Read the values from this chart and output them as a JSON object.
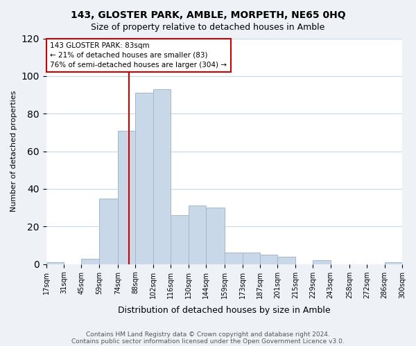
{
  "title": "143, GLOSTER PARK, AMBLE, MORPETH, NE65 0HQ",
  "subtitle": "Size of property relative to detached houses in Amble",
  "xlabel": "Distribution of detached houses by size in Amble",
  "ylabel": "Number of detached properties",
  "bar_color": "#c8d8e8",
  "bar_edge_color": "#a0b8cc",
  "bins": [
    17,
    31,
    45,
    59,
    74,
    88,
    102,
    116,
    130,
    144,
    159,
    173,
    187,
    201,
    215,
    229,
    243,
    258,
    272,
    286,
    300
  ],
  "bin_labels": [
    "17sqm",
    "31sqm",
    "45sqm",
    "59sqm",
    "74sqm",
    "88sqm",
    "102sqm",
    "116sqm",
    "130sqm",
    "144sqm",
    "159sqm",
    "173sqm",
    "187sqm",
    "201sqm",
    "215sqm",
    "229sqm",
    "243sqm",
    "258sqm",
    "272sqm",
    "286sqm",
    "300sqm"
  ],
  "counts": [
    1,
    0,
    3,
    35,
    71,
    91,
    93,
    26,
    31,
    30,
    6,
    6,
    5,
    4,
    0,
    2,
    0,
    0,
    0,
    1
  ],
  "annotation_title": "143 GLOSTER PARK: 83sqm",
  "annotation_line1": "← 21% of detached houses are smaller (83)",
  "annotation_line2": "76% of semi-detached houses are larger (304) →",
  "vline_x": 83,
  "ylim": [
    0,
    120
  ],
  "yticks": [
    0,
    20,
    40,
    60,
    80,
    100,
    120
  ],
  "footer1": "Contains HM Land Registry data © Crown copyright and database right 2024.",
  "footer2": "Contains public sector information licensed under the Open Government Licence v3.0.",
  "background_color": "#eef2f7",
  "plot_bg_color": "#ffffff",
  "grid_color": "#c8d8e8",
  "vline_color": "#cc0000",
  "annotation_box_edge": "#cc0000"
}
